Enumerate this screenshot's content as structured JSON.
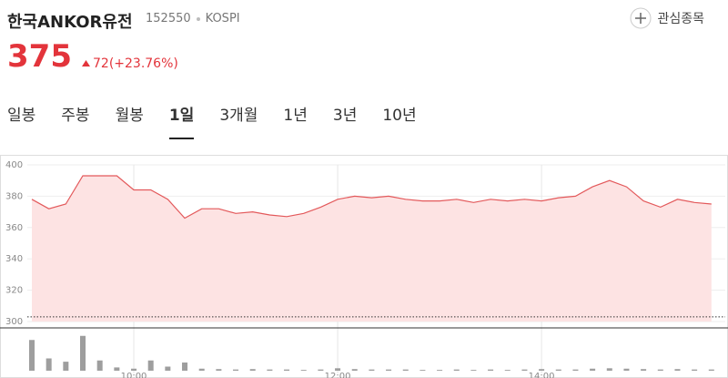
{
  "header": {
    "name": "한국ANKOR유전",
    "code": "152550",
    "market": "KOSPI",
    "watch": "관심종목",
    "price": "375",
    "change": "72(+23.76%)"
  },
  "tabs": [
    "일봉",
    "주봉",
    "월봉",
    "1일",
    "3개월",
    "1년",
    "3년",
    "10년"
  ],
  "chart_data": {
    "type": "area",
    "categories": [
      null,
      null,
      null,
      null,
      null,
      null,
      "10:00",
      null,
      null,
      null,
      null,
      null,
      null,
      null,
      null,
      null,
      null,
      null,
      "12:00",
      null,
      null,
      null,
      null,
      null,
      null,
      null,
      null,
      null,
      null,
      null,
      "14:00",
      null,
      null,
      null,
      null,
      null,
      null,
      null,
      null,
      null,
      null
    ],
    "values": [
      378,
      372,
      375,
      393,
      393,
      393,
      384,
      384,
      378,
      366,
      372,
      372,
      369,
      370,
      368,
      367,
      369,
      373,
      378,
      380,
      379,
      380,
      378,
      377,
      377,
      378,
      376,
      378,
      377,
      378,
      377,
      379,
      380,
      386,
      390,
      386,
      377,
      373,
      378,
      376,
      375
    ],
    "color": "#e3595b",
    "fill": "#fde3e3",
    "ylim": [
      300,
      400
    ],
    "yticks": [
      300,
      320,
      340,
      360,
      380,
      400
    ],
    "grid": true,
    "previous_close": 303,
    "volume": {
      "values": [
        75,
        30,
        22,
        85,
        25,
        8,
        5,
        25,
        10,
        20,
        5,
        4,
        3,
        4,
        3,
        3,
        2,
        3,
        6,
        4,
        3,
        3,
        3,
        2,
        2,
        3,
        2,
        3,
        2,
        3,
        4,
        3,
        3,
        5,
        6,
        5,
        4,
        3,
        4,
        3,
        3
      ],
      "color": "#9e9e9e",
      "ylim": [
        0,
        100
      ]
    }
  }
}
